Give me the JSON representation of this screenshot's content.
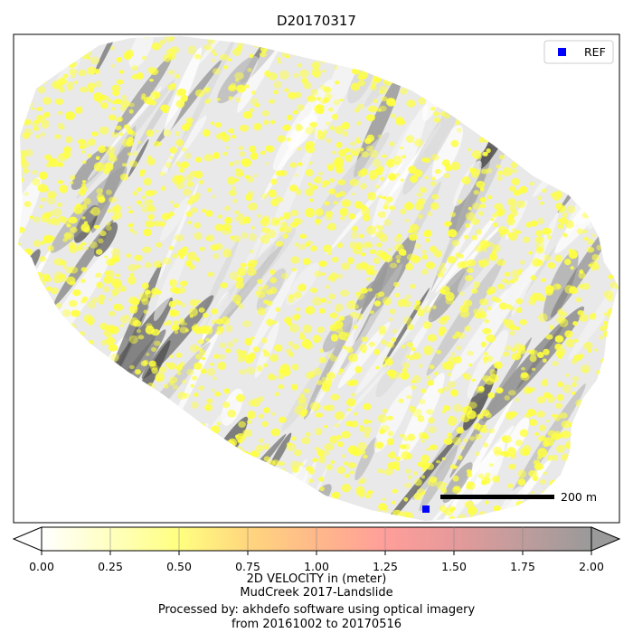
{
  "chart_data": {
    "type": "scatter",
    "title": "D20170317",
    "legend": {
      "placement": "top-right",
      "entries": [
        {
          "label": "REF",
          "marker": "square",
          "color": "#0000ff"
        }
      ]
    },
    "scale_bar": {
      "label": "200 m"
    },
    "colorbar": {
      "label": "2D VELOCITY in (meter)",
      "range": [
        0.0,
        2.0
      ],
      "ticks": [
        "0.00",
        "0.25",
        "0.50",
        "0.75",
        "1.00",
        "1.25",
        "1.50",
        "1.75",
        "2.00"
      ],
      "colors": [
        "#ffffff",
        "#ffffb0",
        "#ffff66",
        "#ffd080",
        "#ffb090",
        "#ff9a9a",
        "#e09a9a",
        "#b89a9a",
        "#9a9a9a"
      ],
      "extend": "both"
    },
    "point_color": "#ffff40",
    "velocity_typical": [
      0.45,
      0.55
    ],
    "caption_lines": [
      "2D VELOCITY in (meter)",
      "MudCreek 2017-Landslide",
      "Processed by: akhdefo software using optical imagery",
      "from 20161002 to 20170516"
    ]
  }
}
